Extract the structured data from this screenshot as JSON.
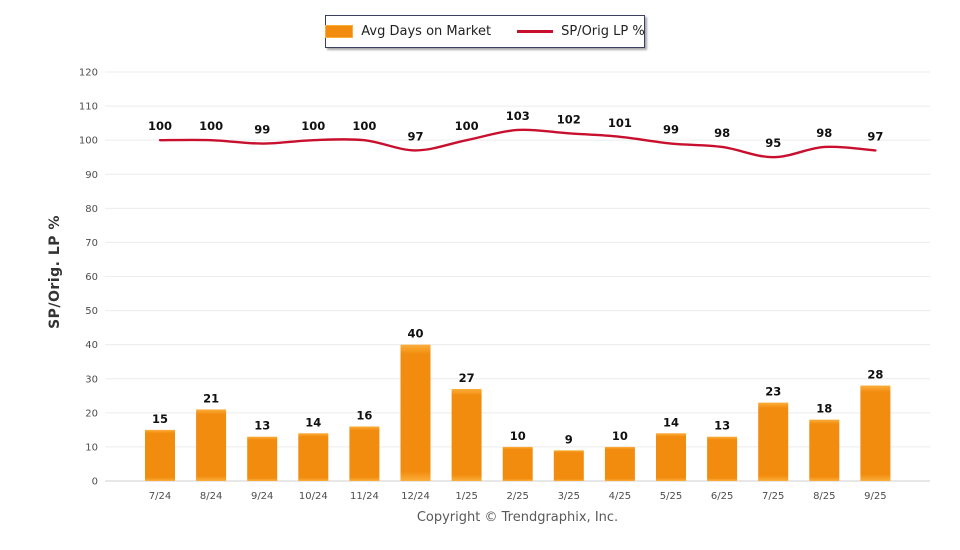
{
  "legend": {
    "bar_label": "Avg Days on Market",
    "line_label": "SP/Orig LP %"
  },
  "footer": {
    "copyright": "Copyright © Trendgraphix, Inc."
  },
  "colors": {
    "bar": "#F28C0E",
    "bar_highlight": "#FBAE3C",
    "line": "#C8102E",
    "grid": "#ECECEC",
    "axis": "#CFCFCF",
    "tick_text": "#4D4D4D",
    "value_text": "#111111"
  },
  "chart_data": {
    "type": "bar+line",
    "categories": [
      "7/24",
      "8/24",
      "9/24",
      "10/24",
      "11/24",
      "12/24",
      "1/25",
      "2/25",
      "3/25",
      "4/25",
      "5/25",
      "6/25",
      "7/25",
      "8/25",
      "9/25"
    ],
    "series": [
      {
        "name": "Avg Days on Market",
        "type": "bar",
        "values": [
          15,
          21,
          13,
          14,
          16,
          40,
          27,
          10,
          9,
          10,
          14,
          13,
          23,
          18,
          28
        ]
      },
      {
        "name": "SP/Orig LP %",
        "type": "line",
        "values": [
          100,
          100,
          99,
          100,
          100,
          97,
          100,
          103,
          102,
          101,
          99,
          98,
          95,
          98,
          97
        ]
      }
    ],
    "ylabel": "SP/Orig. LP %",
    "ylim": [
      0,
      120
    ],
    "ytick_step": 10,
    "grid": true,
    "legend_position": "top-center"
  }
}
